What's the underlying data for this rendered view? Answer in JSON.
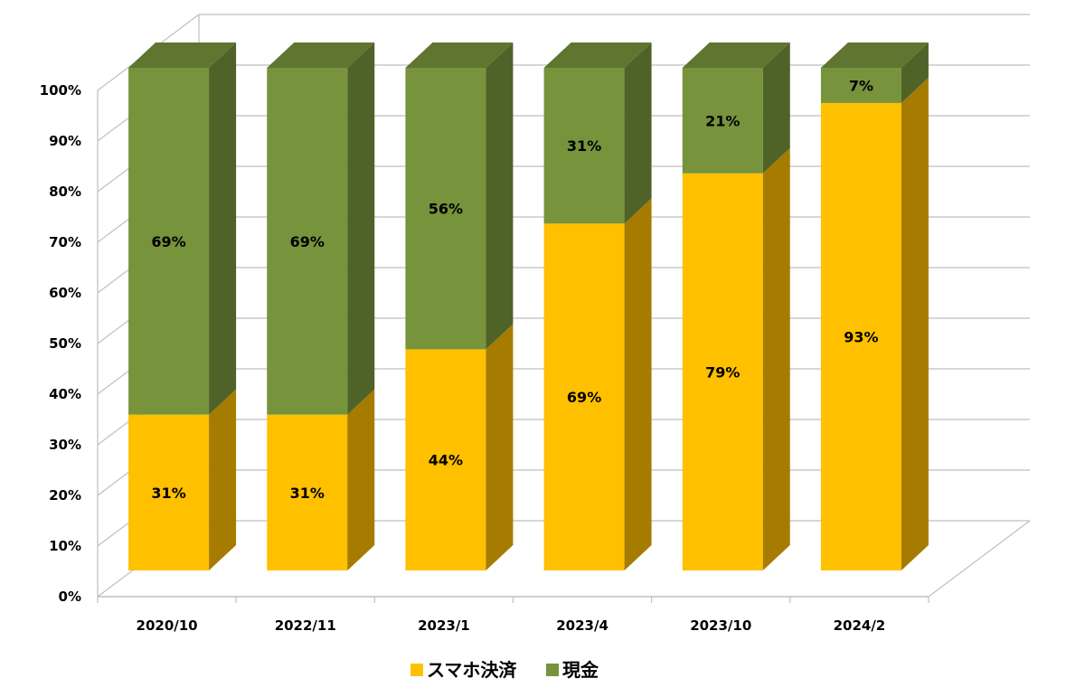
{
  "chart_data": {
    "type": "bar",
    "stacked": true,
    "percent_stacked": true,
    "three_d": true,
    "categories": [
      "2020/10",
      "2022/11",
      "2023/1",
      "2023/4",
      "2023/10",
      "2024/2"
    ],
    "series": [
      {
        "name": "スマホ決済",
        "values": [
          31,
          31,
          44,
          69,
          79,
          93
        ],
        "labels": [
          "31%",
          "31%",
          "44%",
          "69%",
          "79%",
          "93%"
        ],
        "color": "#FFC000",
        "side_color": "#A67C00",
        "top_color": "#E6AD00"
      },
      {
        "name": "現金",
        "values": [
          69,
          69,
          56,
          31,
          21,
          7
        ],
        "labels": [
          "69%",
          "69%",
          "56%",
          "31%",
          "21%",
          "7%"
        ],
        "color": "#77933C",
        "side_color": "#4F6228",
        "top_color": "#5F7530"
      }
    ],
    "yticks": [
      "0%",
      "10%",
      "20%",
      "30%",
      "40%",
      "50%",
      "60%",
      "70%",
      "80%",
      "90%",
      "100%"
    ],
    "ylim": [
      0,
      100
    ],
    "grid": true,
    "legend_position": "bottom-center"
  }
}
